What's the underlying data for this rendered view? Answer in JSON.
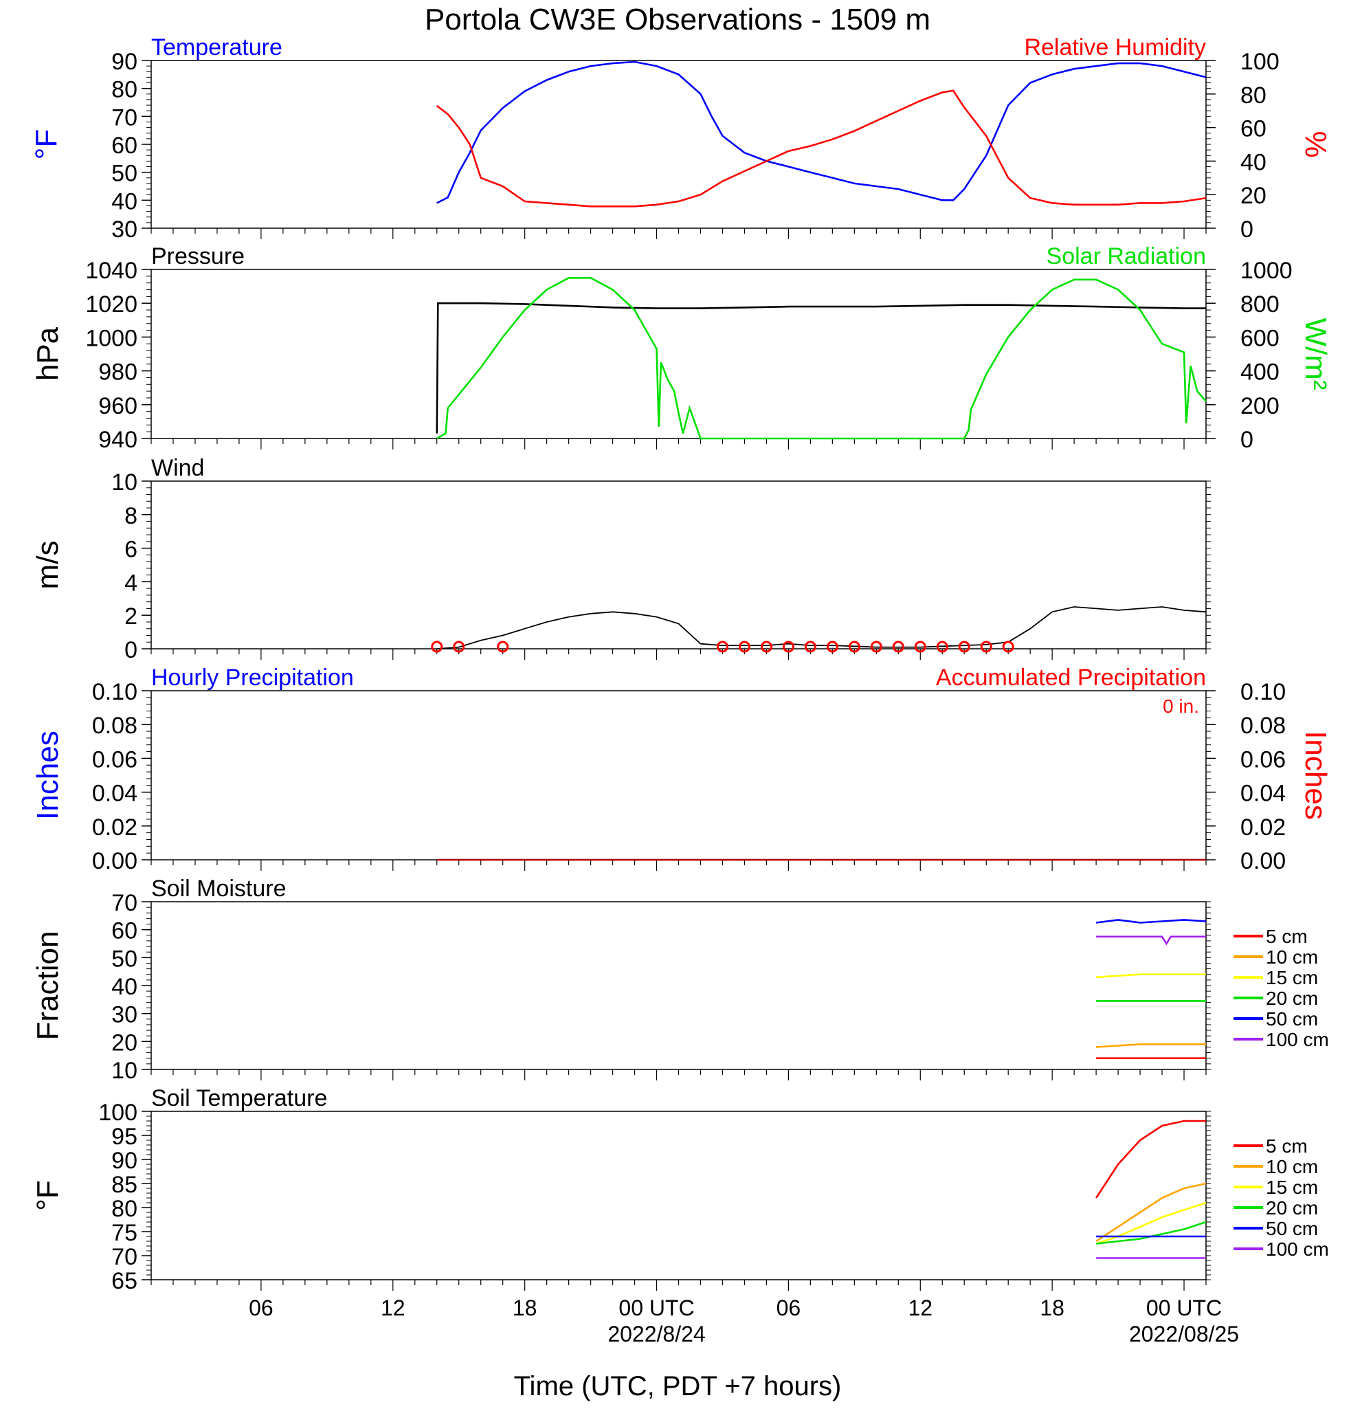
{
  "figure_title": "Portola CW3E Observations - 1509 m",
  "x_axis": {
    "label": "Time (UTC, PDT +7 hours)",
    "tick_labels": [
      "06",
      "12",
      "18",
      "00 UTC",
      "06",
      "12",
      "18",
      "00 UTC"
    ],
    "tick_hours": [
      6,
      12,
      18,
      24,
      30,
      36,
      42,
      48
    ],
    "date_labels": [
      "2022/8/24",
      "2022/08/25"
    ],
    "date_hours": [
      24,
      48
    ],
    "range_hours": [
      1,
      49
    ]
  },
  "colors": {
    "blue": "#0000ff",
    "red": "#ff0000",
    "green": "#00e000",
    "black": "#000000",
    "orange": "#ffa500",
    "yellow": "#ffff00",
    "purple": "#a020f0",
    "darkred": "#b00000"
  },
  "chart_data": [
    {
      "type": "line",
      "panel": "temperature-humidity",
      "title_left": "Temperature",
      "title_right": "Relative Humidity",
      "ylabel_left": "°F",
      "ylabel_right": "%",
      "ylim_left": [
        30,
        90
      ],
      "ylim_right": [
        0,
        100
      ],
      "yticks_left": [
        "30",
        "40",
        "50",
        "60",
        "70",
        "80",
        "90"
      ],
      "yticks_right": [
        "0",
        "20",
        "40",
        "60",
        "80",
        "100"
      ],
      "series": [
        {
          "name": "Temperature",
          "axis": "left",
          "color": "blue",
          "x": [
            14,
            14.5,
            15,
            15.5,
            16,
            17,
            18,
            19,
            20,
            21,
            22,
            23,
            24,
            25,
            26,
            26.5,
            27,
            28,
            29,
            30,
            31,
            32,
            33,
            34,
            35,
            36,
            37,
            37.5,
            38,
            39,
            40,
            41,
            42,
            43,
            44,
            45,
            46,
            47,
            48,
            49
          ],
          "y": [
            39,
            41,
            50,
            57,
            65,
            73,
            79,
            83,
            86,
            88,
            89,
            89.5,
            88,
            85,
            78,
            70,
            63,
            57,
            54,
            52,
            50,
            48,
            46,
            45,
            44,
            42,
            40,
            40,
            44,
            56,
            74,
            82,
            85,
            87,
            88,
            89,
            89,
            88,
            86,
            84
          ]
        },
        {
          "name": "Relative Humidity",
          "axis": "right",
          "color": "red",
          "x": [
            14,
            14.5,
            15,
            15.5,
            16,
            17,
            18,
            19,
            20,
            21,
            22,
            23,
            24,
            25,
            26,
            27,
            28,
            29,
            30,
            31,
            32,
            33,
            34,
            35,
            36,
            37,
            37.5,
            38,
            39,
            40,
            41,
            42,
            43,
            44,
            45,
            46,
            47,
            48,
            49
          ],
          "y": [
            73,
            68,
            60,
            50,
            30,
            25,
            16,
            15,
            14,
            13,
            13,
            13,
            14,
            16,
            20,
            28,
            34,
            40,
            46,
            49,
            53,
            58,
            64,
            70,
            76,
            81,
            82,
            72,
            55,
            30,
            18,
            15,
            14,
            14,
            14,
            15,
            15,
            16,
            18
          ]
        }
      ]
    },
    {
      "type": "line",
      "panel": "pressure-solar",
      "title_left": "Pressure",
      "title_right": "Solar Radiation",
      "ylabel_left": "hPa",
      "ylabel_right": "W/m²",
      "ylim_left": [
        940,
        1040
      ],
      "ylim_right": [
        0,
        1000
      ],
      "yticks_left": [
        "940",
        "960",
        "980",
        "1000",
        "1020",
        "1040"
      ],
      "yticks_right": [
        "0",
        "200",
        "400",
        "600",
        "800",
        "1000"
      ],
      "series": [
        {
          "name": "Pressure",
          "axis": "left",
          "color": "black",
          "x": [
            14,
            14.05,
            16,
            18,
            20,
            22,
            24,
            26,
            28,
            30,
            32,
            34,
            36,
            38,
            40,
            42,
            44,
            46,
            48,
            49
          ],
          "y": [
            943,
            1020,
            1020,
            1019.5,
            1018.5,
            1017.5,
            1017,
            1017,
            1017.5,
            1018,
            1018,
            1018,
            1018.5,
            1019,
            1019,
            1018.5,
            1018,
            1017.5,
            1017,
            1017
          ]
        },
        {
          "name": "Solar Radiation",
          "axis": "right",
          "color": "green",
          "x": [
            14,
            14.4,
            14.5,
            16,
            17,
            18,
            19,
            20,
            21,
            22,
            23,
            24,
            24.1,
            24.2,
            24.5,
            24.8,
            25,
            25.2,
            25.5,
            26,
            26.5,
            38,
            38.2,
            38.3,
            39,
            40,
            41,
            42,
            43,
            44,
            45,
            46,
            47,
            48,
            48.1,
            48.3,
            48.6,
            49
          ],
          "y": [
            0,
            30,
            180,
            420,
            600,
            760,
            880,
            950,
            950,
            880,
            760,
            530,
            70,
            450,
            350,
            280,
            150,
            30,
            180,
            0,
            0,
            0,
            50,
            170,
            380,
            600,
            760,
            880,
            940,
            940,
            880,
            760,
            560,
            510,
            90,
            430,
            280,
            220
          ]
        }
      ]
    },
    {
      "type": "line",
      "panel": "wind",
      "title_left": "Wind",
      "ylabel_left": "m/s",
      "ylim_left": [
        0,
        10
      ],
      "yticks_left": [
        "0",
        "2",
        "4",
        "6",
        "8",
        "10"
      ],
      "series": [
        {
          "name": "Wind",
          "axis": "left",
          "color": "black",
          "x": [
            14,
            15,
            16,
            17,
            18,
            19,
            20,
            21,
            22,
            23,
            24,
            25,
            26,
            27,
            28,
            29,
            30,
            31,
            32,
            33,
            34,
            35,
            36,
            37,
            38,
            39,
            40,
            41,
            42,
            43,
            44,
            45,
            46,
            47,
            48,
            49
          ],
          "y": [
            0,
            0.1,
            0.5,
            0.8,
            1.2,
            1.6,
            1.9,
            2.1,
            2.2,
            2.1,
            1.9,
            1.5,
            0.3,
            0.2,
            0.2,
            0.2,
            0.3,
            0.2,
            0.2,
            0.15,
            0.1,
            0.1,
            0.1,
            0.15,
            0.2,
            0.25,
            0.4,
            1.2,
            2.2,
            2.5,
            2.4,
            2.3,
            2.4,
            2.5,
            2.3,
            2.2
          ]
        }
      ],
      "calm_markers_hours": [
        14,
        15,
        17,
        27,
        28,
        29,
        30,
        31,
        32,
        33,
        34,
        35,
        36,
        37,
        38,
        39,
        40
      ]
    },
    {
      "type": "line",
      "panel": "precipitation",
      "title_left": "Hourly Precipitation",
      "title_right": "Accumulated Precipitation",
      "annotation": "0 in.",
      "ylabel_left": "Inches",
      "ylabel_right": "Inches",
      "ylim_left": [
        0,
        0.1
      ],
      "ylim_right": [
        0,
        0.1
      ],
      "yticks_left": [
        "0.00",
        "0.02",
        "0.04",
        "0.06",
        "0.08",
        "0.10"
      ],
      "yticks_right": [
        "0.00",
        "0.02",
        "0.04",
        "0.06",
        "0.08",
        "0.10"
      ],
      "series": [
        {
          "name": "Accumulated Precipitation",
          "axis": "left",
          "color": "darkred",
          "x": [
            14,
            49
          ],
          "y": [
            0,
            0
          ]
        }
      ]
    },
    {
      "type": "line",
      "panel": "soil-moisture",
      "title_left": "Soil Moisture",
      "ylabel_left": "Fraction",
      "ylim_left": [
        10,
        70
      ],
      "yticks_left": [
        "10",
        "20",
        "30",
        "40",
        "50",
        "60",
        "70"
      ],
      "legend_placement": "right",
      "series": [
        {
          "name": "5 cm",
          "color": "red",
          "x": [
            44,
            49
          ],
          "y": [
            14,
            14
          ]
        },
        {
          "name": "10 cm",
          "color": "orange",
          "x": [
            44,
            46,
            49
          ],
          "y": [
            18,
            19,
            19
          ]
        },
        {
          "name": "15 cm",
          "color": "yellow",
          "x": [
            44,
            46,
            49
          ],
          "y": [
            43,
            44,
            44
          ]
        },
        {
          "name": "20 cm",
          "color": "green",
          "x": [
            44,
            49
          ],
          "y": [
            34.5,
            34.5
          ]
        },
        {
          "name": "50 cm",
          "color": "blue",
          "x": [
            44,
            45,
            46,
            47,
            48,
            49
          ],
          "y": [
            62.5,
            63.5,
            62.5,
            63,
            63.5,
            63
          ]
        },
        {
          "name": "100 cm",
          "color": "purple",
          "x": [
            44,
            47,
            47.2,
            47.4,
            49
          ],
          "y": [
            57.5,
            57.5,
            55,
            57.5,
            57.5
          ]
        }
      ]
    },
    {
      "type": "line",
      "panel": "soil-temperature",
      "title_left": "Soil Temperature",
      "ylabel_left": "°F",
      "ylim_left": [
        65,
        100
      ],
      "yticks_left": [
        "65",
        "70",
        "75",
        "80",
        "85",
        "90",
        "95",
        "100"
      ],
      "legend_placement": "right",
      "series": [
        {
          "name": "5 cm",
          "color": "red",
          "x": [
            44,
            45,
            46,
            47,
            48,
            49
          ],
          "y": [
            82,
            89,
            94,
            97,
            98,
            98
          ]
        },
        {
          "name": "10 cm",
          "color": "orange",
          "x": [
            44,
            45,
            46,
            47,
            48,
            49
          ],
          "y": [
            73,
            76,
            79,
            82,
            84,
            85
          ]
        },
        {
          "name": "15 cm",
          "color": "yellow",
          "x": [
            44,
            45,
            46,
            47,
            48,
            49
          ],
          "y": [
            72.5,
            74,
            76,
            78,
            79.5,
            81
          ]
        },
        {
          "name": "20 cm",
          "color": "green",
          "x": [
            44,
            45,
            46,
            47,
            48,
            49
          ],
          "y": [
            72.5,
            73,
            73.5,
            74.5,
            75.5,
            77
          ]
        },
        {
          "name": "50 cm",
          "color": "blue",
          "x": [
            44,
            49
          ],
          "y": [
            74,
            74
          ]
        },
        {
          "name": "100 cm",
          "color": "purple",
          "x": [
            44,
            49
          ],
          "y": [
            69.5,
            69.5
          ]
        }
      ]
    }
  ]
}
